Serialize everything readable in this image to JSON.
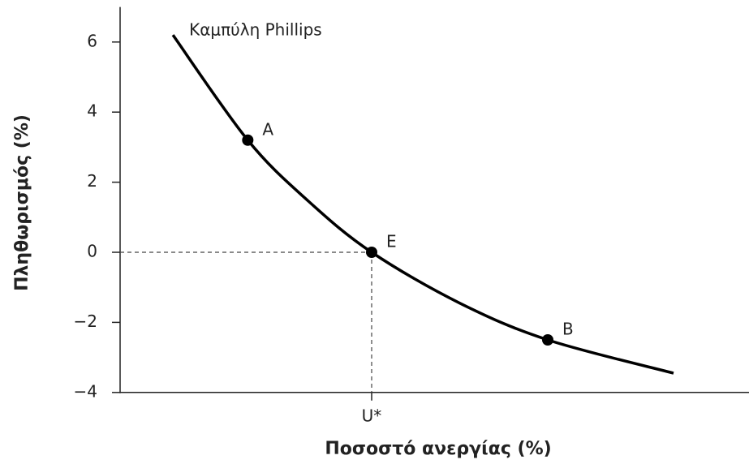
{
  "chart_data": {
    "type": "line",
    "xlabel": "Ποσοστό ανεργίας (%)",
    "ylabel": "Πληθωρισμός (%)",
    "xlim": [
      0,
      10
    ],
    "ylim": [
      -4,
      7
    ],
    "xticks": [
      {
        "value": 4,
        "label": "U*"
      }
    ],
    "yticks": [
      {
        "value": -4,
        "label": "−4"
      },
      {
        "value": -2,
        "label": "−2"
      },
      0,
      2,
      4,
      6
    ],
    "series": [
      {
        "name": "Καμπύλη Phillips",
        "color": "#000000",
        "x": [
          0.84,
          2.03,
          3,
          4,
          5.4,
          6.8,
          8.8
        ],
        "values": [
          6.2,
          3.2,
          1.45,
          0,
          -1.45,
          -2.5,
          -3.45
        ]
      }
    ],
    "points": [
      {
        "label": "A",
        "x": 2.03,
        "y": 3.2
      },
      {
        "label": "E",
        "x": 4,
        "y": 0
      },
      {
        "label": "B",
        "x": 6.8,
        "y": -2.5
      }
    ]
  }
}
